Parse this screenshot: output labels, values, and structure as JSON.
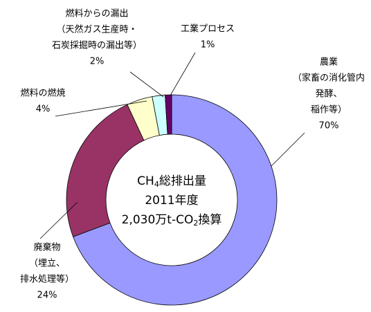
{
  "chart_data": {
    "type": "donut",
    "center_text": [
      [
        "CH",
        "4",
        "総排出量"
      ],
      [
        "2011年度"
      ],
      [
        "2,030万t-CO",
        "2",
        "換算"
      ]
    ],
    "labels": [
      [
        "農業",
        "（家畜の消化管内",
        "発酵、",
        "稲作等）"
      ],
      [
        "廃棄物",
        "（埋立、",
        "排水処理等）"
      ],
      [
        "燃料の燃焼"
      ],
      [
        "燃料からの漏出",
        "（天然ガス生産時・",
        "石炭採掘時の漏出等）"
      ],
      [
        "工業プロセス"
      ]
    ],
    "values": [
      70,
      24,
      4,
      2,
      1
    ],
    "value_labels": [
      "70%",
      "24%",
      "4%",
      "2%",
      "1%"
    ],
    "colors": [
      "#9999ff",
      "#993366",
      "#ffffcc",
      "#ccffff",
      "#660066"
    ]
  }
}
